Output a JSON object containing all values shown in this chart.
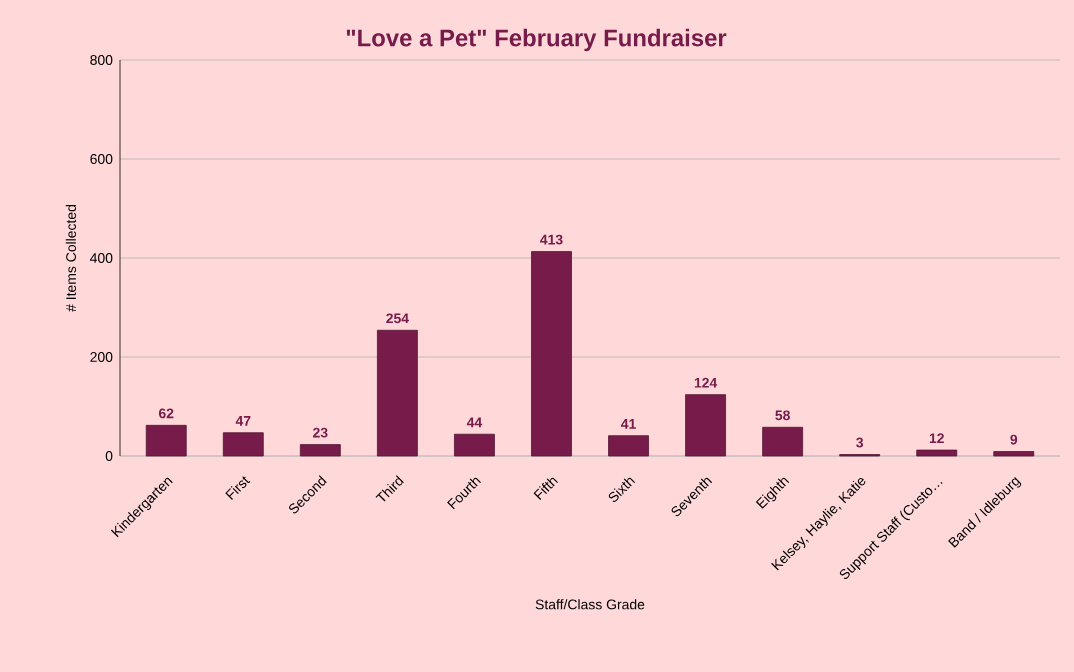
{
  "chart_data": {
    "type": "bar",
    "title": "\"Love a Pet\" February Fundraiser",
    "xlabel": "Staff/Class Grade",
    "ylabel": "# Items Collected",
    "categories": [
      "Kindergarten",
      "First",
      "Second",
      "Third",
      "Fourth",
      "Fifth",
      "Sixth",
      "Seventh",
      "Eighth",
      "Kelsey, Haylie, Katie",
      "Support Staff (Custo…",
      "Band / Idleburg"
    ],
    "values": [
      62,
      47,
      23,
      254,
      44,
      413,
      41,
      124,
      58,
      3,
      12,
      9
    ],
    "color": "#771c4a",
    "ylim": [
      0,
      800
    ],
    "yticks": [
      0,
      200,
      400,
      600,
      800
    ],
    "grid": "y",
    "data_labels": true
  }
}
